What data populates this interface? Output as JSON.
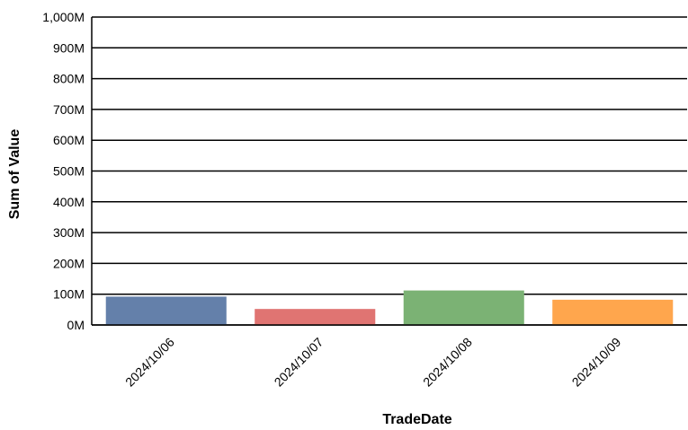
{
  "chart_data": {
    "type": "bar",
    "categories": [
      "2024/10/06",
      "2024/10/07",
      "2024/10/08",
      "2024/10/09"
    ],
    "values": [
      92,
      52,
      112,
      82
    ],
    "colors": [
      "#6480aa",
      "#e07472",
      "#7bb274",
      "#ffa64d"
    ],
    "xlabel": "TradeDate",
    "ylabel": "Sum of Value",
    "ylim": [
      0,
      1000
    ],
    "yticks": [
      0,
      100,
      200,
      300,
      400,
      500,
      600,
      700,
      800,
      900,
      1000
    ],
    "ytick_labels": [
      "0M",
      "100M",
      "200M",
      "300M",
      "400M",
      "500M",
      "600M",
      "700M",
      "800M",
      "900M",
      "1,000M"
    ],
    "grid": true
  }
}
